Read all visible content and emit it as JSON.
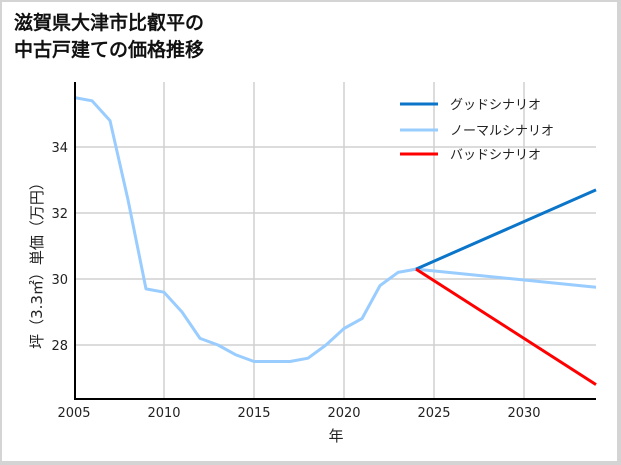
{
  "title_lines": [
    "滋賀県大津市比叡平の",
    "中古戸建ての価格推移"
  ],
  "chart_data": {
    "type": "line",
    "title": "滋賀県大津市比叡平の中古戸建ての価格推移",
    "xlabel": "年",
    "ylabel": "坪（3.3㎡）単価（万円）",
    "xlim": [
      2005,
      2034
    ],
    "ylim": [
      26.6,
      36.1
    ],
    "x_ticks": [
      2005,
      2010,
      2015,
      2020,
      2025,
      2030
    ],
    "y_ticks": [
      28,
      30,
      32,
      34
    ],
    "grid": true,
    "legend_position": "upper right",
    "series": [
      {
        "name": "ノーマルシナリオ",
        "color": "#99ccff",
        "x": [
          2005,
          2006,
          2007,
          2008,
          2009,
          2010,
          2011,
          2012,
          2013,
          2014,
          2015,
          2016,
          2017,
          2018,
          2019,
          2020,
          2021,
          2022,
          2023,
          2024,
          2034
        ],
        "values": [
          35.5,
          35.4,
          34.8,
          32.4,
          29.7,
          29.6,
          29.0,
          28.2,
          28.0,
          27.7,
          27.5,
          27.5,
          27.5,
          27.6,
          28.0,
          28.5,
          28.8,
          29.8,
          30.2,
          30.3,
          29.75
        ]
      },
      {
        "name": "グッドシナリオ",
        "color": "#0a75c9",
        "x": [
          2024,
          2034
        ],
        "values": [
          30.3,
          32.7
        ]
      },
      {
        "name": "バッドシナリオ",
        "color": "#ff0000",
        "x": [
          2024,
          2034
        ],
        "values": [
          30.3,
          26.8
        ]
      }
    ]
  },
  "legend": [
    {
      "label": "グッドシナリオ",
      "color": "#0a75c9"
    },
    {
      "label": "ノーマルシナリオ",
      "color": "#99ccff"
    },
    {
      "label": "バッドシナリオ",
      "color": "#ff0000"
    }
  ],
  "axes": {
    "xlabel": "年",
    "ylabel": "坪（3.3㎡）単価（万円）",
    "x_tick_labels": [
      "2005",
      "2010",
      "2015",
      "2020",
      "2025",
      "2030"
    ],
    "y_tick_labels": [
      "34",
      "32",
      "30",
      "28"
    ]
  }
}
